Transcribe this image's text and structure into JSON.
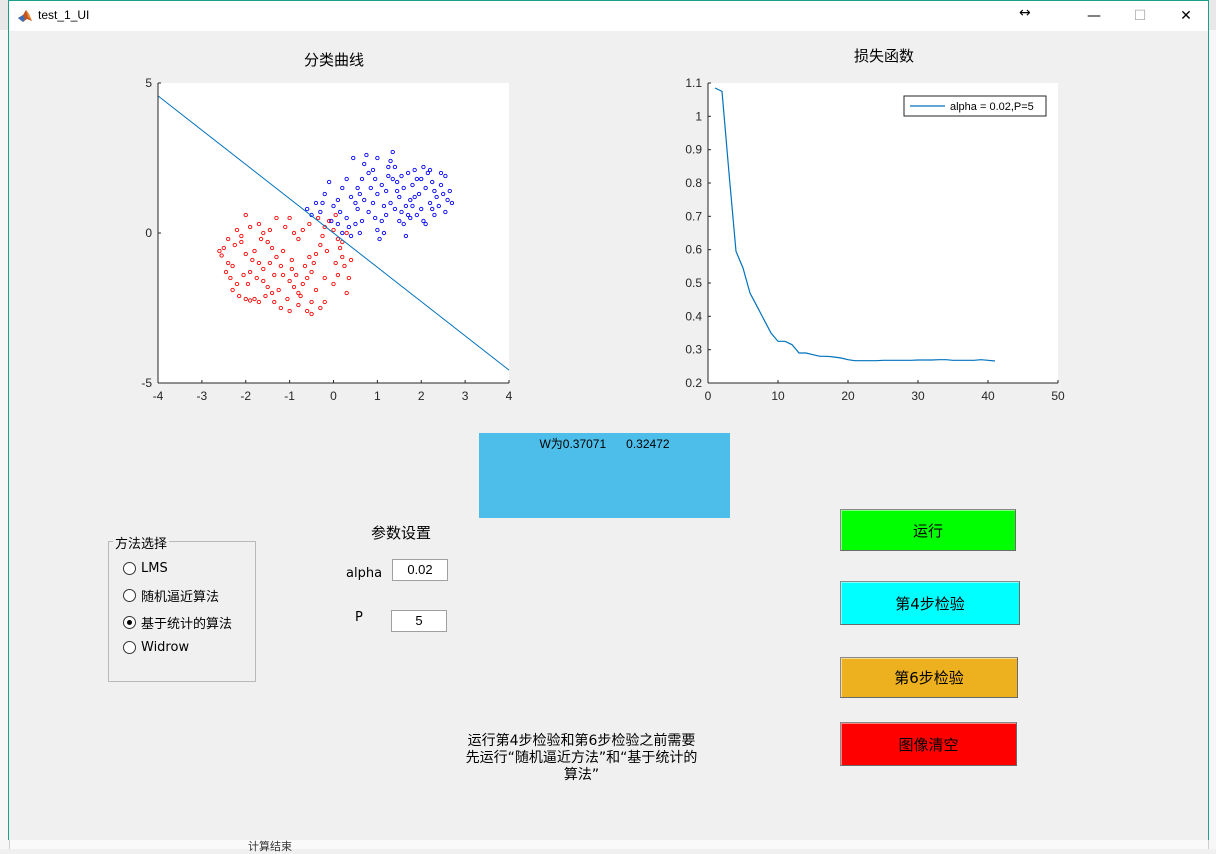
{
  "window": {
    "title": "test_1_UI",
    "controls": {
      "minimize": "—",
      "maximize": "☐",
      "close": "✕"
    }
  },
  "classification_plot": {
    "title": "分类曲线",
    "x_ticks": [
      "-4",
      "-3",
      "-2",
      "-1",
      "0",
      "1",
      "2",
      "3",
      "4"
    ],
    "y_ticks": [
      "5",
      "0",
      "-5"
    ]
  },
  "loss_plot": {
    "title": "损失函数",
    "legend": "alpha = 0.02,P=5",
    "x_ticks": [
      "0",
      "10",
      "20",
      "30",
      "40",
      "50"
    ],
    "y_ticks": [
      "1.1",
      "1",
      "0.9",
      "0.8",
      "0.7",
      "0.6",
      "0.5",
      "0.4",
      "0.3",
      "0.2"
    ]
  },
  "chart_data": [
    {
      "type": "scatter",
      "title": "分类曲线",
      "xlim": [
        -4,
        4
      ],
      "ylim": [
        -5,
        5
      ],
      "series": [
        {
          "color": "#ff0000",
          "marker": "circle",
          "points": [
            [
              -2.6,
              -0.6
            ],
            [
              -2.5,
              -0.5
            ],
            [
              -2.55,
              -0.75
            ],
            [
              -2.4,
              -1.0
            ],
            [
              -2.3,
              -1.1
            ],
            [
              -2.45,
              -1.3
            ],
            [
              -2.35,
              -1.5
            ],
            [
              -2.2,
              -1.7
            ],
            [
              -2.3,
              -1.9
            ],
            [
              -2.15,
              -2.1
            ],
            [
              -2.0,
              -2.2
            ],
            [
              -1.9,
              -2.25
            ],
            [
              -1.8,
              -2.2
            ],
            [
              -2.1,
              -0.3
            ],
            [
              -2.0,
              -0.7
            ],
            [
              -1.85,
              -0.9
            ],
            [
              -1.7,
              -1.0
            ],
            [
              -1.9,
              -1.3
            ],
            [
              -1.75,
              -1.5
            ],
            [
              -1.6,
              -1.6
            ],
            [
              -1.5,
              -1.8
            ],
            [
              -1.4,
              -2.0
            ],
            [
              -1.35,
              -2.3
            ],
            [
              -1.2,
              -2.5
            ],
            [
              -1.0,
              -2.6
            ],
            [
              -0.8,
              -2.4
            ],
            [
              -0.6,
              -2.6
            ],
            [
              -0.5,
              -2.7
            ],
            [
              -0.3,
              -2.5
            ],
            [
              -0.2,
              -2.3
            ],
            [
              -2.2,
              0.1
            ],
            [
              -2.1,
              -0.1
            ],
            [
              -1.9,
              0.2
            ],
            [
              -1.7,
              0.3
            ],
            [
              -1.6,
              0.0
            ],
            [
              -1.5,
              -0.3
            ],
            [
              -1.4,
              -0.5
            ],
            [
              -1.3,
              -0.8
            ],
            [
              -1.2,
              -1.1
            ],
            [
              -1.15,
              -1.4
            ],
            [
              -1.0,
              -1.6
            ],
            [
              -0.9,
              -1.8
            ],
            [
              -0.8,
              -2.0
            ],
            [
              -0.7,
              -1.7
            ],
            [
              -0.6,
              -1.5
            ],
            [
              -0.5,
              -1.3
            ],
            [
              -0.45,
              -1.0
            ],
            [
              -0.4,
              -0.7
            ],
            [
              -0.3,
              -0.4
            ],
            [
              -0.25,
              -0.1
            ],
            [
              -0.2,
              0.2
            ],
            [
              -0.1,
              0.4
            ],
            [
              0.0,
              0.1
            ],
            [
              0.1,
              -0.2
            ],
            [
              0.15,
              -0.5
            ],
            [
              0.2,
              -0.8
            ],
            [
              0.25,
              -1.1
            ],
            [
              0.1,
              -1.4
            ],
            [
              0.0,
              -1.7
            ],
            [
              0.3,
              -2.0
            ],
            [
              0.35,
              -1.5
            ],
            [
              0.4,
              -0.9
            ],
            [
              -1.3,
              0.5
            ],
            [
              -1.1,
              0.2
            ],
            [
              -0.9,
              0.0
            ],
            [
              -0.8,
              -0.2
            ],
            [
              -0.7,
              0.1
            ],
            [
              -0.55,
              0.3
            ],
            [
              -0.35,
              0.5
            ],
            [
              -1.6,
              -1.2
            ],
            [
              -1.45,
              -1.0
            ],
            [
              -1.25,
              -1.9
            ],
            [
              -1.05,
              -2.2
            ],
            [
              -0.85,
              -1.4
            ],
            [
              -0.65,
              -1.1
            ],
            [
              -1.8,
              -0.6
            ],
            [
              -1.95,
              -1.7
            ],
            [
              -2.25,
              -0.4
            ],
            [
              -1.55,
              -2.1
            ],
            [
              -0.95,
              -0.9
            ],
            [
              -0.15,
              -0.6
            ],
            [
              0.05,
              -1.0
            ],
            [
              -2.05,
              -1.4
            ],
            [
              -1.65,
              -0.2
            ],
            [
              -0.75,
              -2.1
            ],
            [
              -0.4,
              -1.9
            ],
            [
              0.2,
              -0.3
            ],
            [
              -1.15,
              -0.6
            ],
            [
              -1.35,
              -1.4
            ],
            [
              -0.55,
              -0.8
            ],
            [
              -1.0,
              0.5
            ],
            [
              -0.5,
              -2.3
            ],
            [
              -2.0,
              0.6
            ],
            [
              -2.4,
              -0.2
            ],
            [
              -1.7,
              -2.3
            ],
            [
              0.05,
              0.6
            ],
            [
              -0.2,
              -1.5
            ],
            [
              -0.95,
              -1.2
            ],
            [
              -1.45,
              0.1
            ],
            [
              0.3,
              0.0
            ]
          ]
        },
        {
          "color": "#0000ff",
          "marker": "circle",
          "points": [
            [
              -0.6,
              0.8
            ],
            [
              -0.5,
              0.6
            ],
            [
              -0.4,
              1.0
            ],
            [
              -0.3,
              0.7
            ],
            [
              -0.2,
              1.3
            ],
            [
              -0.1,
              1.7
            ],
            [
              0.0,
              0.9
            ],
            [
              0.1,
              1.1
            ],
            [
              0.2,
              1.5
            ],
            [
              0.3,
              0.5
            ],
            [
              0.35,
              0.2
            ],
            [
              0.4,
              -0.1
            ],
            [
              0.5,
              0.3
            ],
            [
              0.55,
              0.8
            ],
            [
              0.6,
              1.3
            ],
            [
              0.65,
              1.8
            ],
            [
              0.7,
              2.3
            ],
            [
              0.75,
              2.6
            ],
            [
              0.8,
              2.0
            ],
            [
              0.85,
              1.5
            ],
            [
              0.9,
              1.0
            ],
            [
              0.95,
              0.5
            ],
            [
              1.0,
              0.1
            ],
            [
              1.05,
              -0.2
            ],
            [
              1.1,
              0.4
            ],
            [
              1.15,
              0.9
            ],
            [
              1.2,
              1.4
            ],
            [
              1.25,
              1.9
            ],
            [
              1.3,
              2.4
            ],
            [
              1.35,
              2.7
            ],
            [
              1.4,
              2.2
            ],
            [
              1.45,
              1.7
            ],
            [
              1.5,
              1.2
            ],
            [
              1.55,
              0.7
            ],
            [
              1.6,
              0.3
            ],
            [
              1.65,
              -0.1
            ],
            [
              1.7,
              0.6
            ],
            [
              1.75,
              1.1
            ],
            [
              1.8,
              1.6
            ],
            [
              1.85,
              2.1
            ],
            [
              1.9,
              1.8
            ],
            [
              1.95,
              1.3
            ],
            [
              2.0,
              0.8
            ],
            [
              2.05,
              0.4
            ],
            [
              2.1,
              1.5
            ],
            [
              2.15,
              2.0
            ],
            [
              2.2,
              1.0
            ],
            [
              2.25,
              1.7
            ],
            [
              2.3,
              0.6
            ],
            [
              2.35,
              1.2
            ],
            [
              2.4,
              0.9
            ],
            [
              2.45,
              1.6
            ],
            [
              2.5,
              1.3
            ],
            [
              2.55,
              0.7
            ],
            [
              2.6,
              1.1
            ],
            [
              2.65,
              1.4
            ],
            [
              2.7,
              1.0
            ],
            [
              0.45,
              2.5
            ],
            [
              1.0,
              2.5
            ],
            [
              0.6,
              0.0
            ],
            [
              0.2,
              0.0
            ],
            [
              -0.05,
              0.4
            ],
            [
              0.15,
              0.7
            ],
            [
              0.5,
              1.0
            ],
            [
              0.7,
              1.1
            ],
            [
              1.2,
              0.6
            ],
            [
              1.4,
              0.8
            ],
            [
              1.6,
              1.5
            ],
            [
              1.8,
              0.9
            ],
            [
              2.0,
              1.8
            ],
            [
              2.2,
              2.1
            ],
            [
              0.9,
              2.1
            ],
            [
              1.1,
              1.6
            ],
            [
              1.3,
              1.0
            ],
            [
              1.5,
              0.4
            ],
            [
              1.7,
              2.0
            ],
            [
              1.9,
              0.6
            ],
            [
              2.1,
              0.3
            ],
            [
              2.3,
              1.4
            ],
            [
              2.45,
              2.0
            ],
            [
              0.3,
              1.8
            ],
            [
              0.55,
              1.5
            ],
            [
              0.8,
              0.7
            ],
            [
              1.0,
              1.3
            ],
            [
              1.25,
              2.2
            ],
            [
              1.45,
              1.4
            ],
            [
              1.65,
              0.9
            ],
            [
              1.85,
              1.2
            ],
            [
              2.05,
              2.2
            ],
            [
              2.25,
              0.8
            ],
            [
              0.1,
              0.3
            ],
            [
              -0.25,
              1.0
            ],
            [
              0.4,
              1.2
            ],
            [
              0.65,
              0.4
            ],
            [
              0.95,
              1.8
            ],
            [
              1.15,
              0.0
            ],
            [
              1.35,
              1.8
            ],
            [
              1.55,
              1.9
            ],
            [
              1.75,
              0.5
            ],
            [
              2.55,
              1.9
            ]
          ]
        },
        {
          "color": "#0072bd",
          "type": "line",
          "points": [
            [
              -4,
              4.57
            ],
            [
              4,
              -4.57
            ]
          ]
        }
      ]
    },
    {
      "type": "line",
      "title": "损失函数",
      "xlim": [
        0,
        50
      ],
      "ylim": [
        0.2,
        1.1
      ],
      "series": [
        {
          "name": "alpha = 0.02,P=5",
          "color": "#0072bd",
          "x": [
            1,
            2,
            3,
            4,
            5,
            6,
            7,
            8,
            9,
            10,
            11,
            12,
            13,
            14,
            15,
            16,
            17,
            18,
            19,
            20,
            21,
            22,
            23,
            24,
            25,
            26,
            27,
            28,
            29,
            30,
            31,
            32,
            33,
            34,
            35,
            36,
            37,
            38,
            39,
            40,
            41
          ],
          "y": [
            1.085,
            1.075,
            0.83,
            0.595,
            0.545,
            0.47,
            0.43,
            0.39,
            0.35,
            0.325,
            0.325,
            0.315,
            0.29,
            0.29,
            0.285,
            0.28,
            0.28,
            0.278,
            0.275,
            0.27,
            0.267,
            0.267,
            0.267,
            0.267,
            0.268,
            0.268,
            0.268,
            0.268,
            0.268,
            0.269,
            0.269,
            0.269,
            0.27,
            0.27,
            0.268,
            0.268,
            0.268,
            0.268,
            0.27,
            0.268,
            0.266
          ]
        }
      ]
    }
  ],
  "weights": {
    "text": "W为0.37071      0.32472"
  },
  "method_group": {
    "title": "方法选择",
    "options": [
      {
        "label": "LMS",
        "checked": false
      },
      {
        "label": "随机逼近算法",
        "checked": false
      },
      {
        "label": "基于统计的算法",
        "checked": true
      },
      {
        "label": "Widrow",
        "checked": false
      }
    ]
  },
  "params": {
    "title": "参数设置",
    "alpha_label": "alpha",
    "alpha_value": "0.02",
    "p_label": "P",
    "p_value": "5"
  },
  "buttons": {
    "run": {
      "label": "运行",
      "color": "#00ff00"
    },
    "check4": {
      "label": "第4步检验",
      "color": "#00ffff"
    },
    "check6": {
      "label": "第6步检验",
      "color": "#edb120"
    },
    "clear": {
      "label": "图像清空",
      "color": "#ff0000"
    }
  },
  "note": {
    "line1": "运行第4步检验和第6步检验之前需要",
    "line2": "先运行“随机逼近方法”和“基于统计的",
    "line3": "算法”"
  },
  "background": {
    "bottom_text": "计算结束"
  }
}
